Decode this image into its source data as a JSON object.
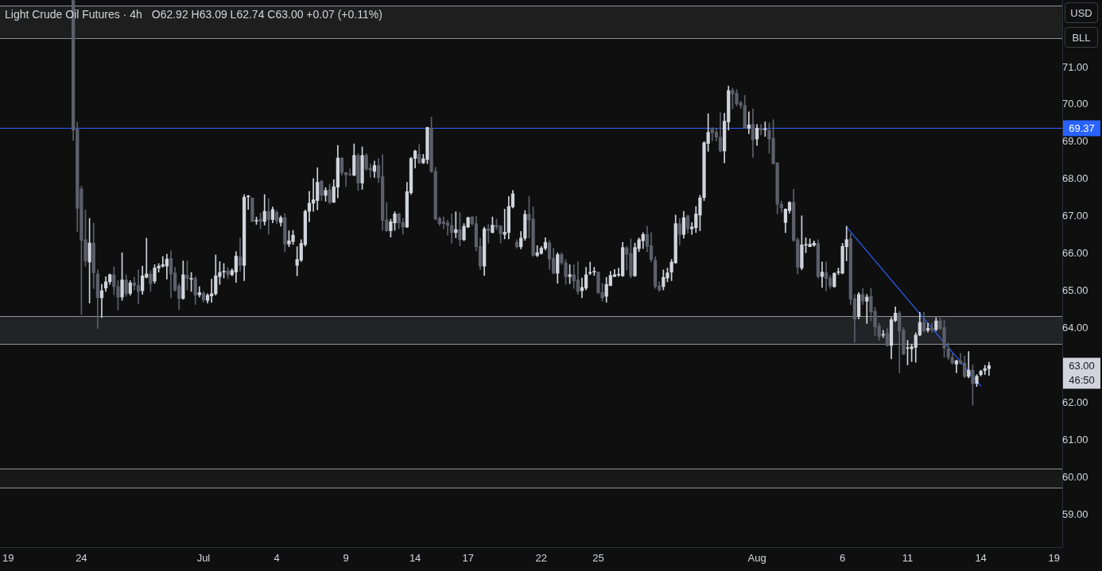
{
  "chart_data": {
    "type": "candlestick",
    "title": "Light Crude Oil Futures · 4h",
    "subtitle": "O62.92 H63.09 L62.74 C63.00 +0.07 (+0.11%)",
    "categories": [
      null,
      null,
      "19",
      null,
      null,
      null,
      null,
      null,
      null,
      null,
      null,
      null,
      null,
      null,
      null,
      null,
      null,
      null,
      null,
      null,
      "24",
      null,
      null,
      null,
      null,
      null,
      null,
      null,
      null,
      null,
      null,
      null,
      null,
      null,
      null,
      null,
      null,
      null,
      null,
      null,
      null,
      null,
      null,
      null,
      null,
      null,
      null,
      null,
      null,
      null,
      "Jul",
      null,
      null,
      null,
      null,
      null,
      null,
      null,
      null,
      null,
      null,
      null,
      null,
      null,
      null,
      null,
      null,
      null,
      "4",
      null,
      null,
      null,
      null,
      null,
      null,
      null,
      null,
      null,
      null,
      null,
      null,
      null,
      null,
      null,
      null,
      "9",
      null,
      null,
      null,
      null,
      null,
      null,
      null,
      null,
      null,
      null,
      null,
      null,
      null,
      null,
      null,
      null,
      "14",
      null,
      null,
      null,
      null,
      null,
      null,
      null,
      null,
      null,
      null,
      null,
      null,
      "17",
      null,
      null,
      null,
      null,
      null,
      null,
      null,
      null,
      null,
      null,
      null,
      null,
      null,
      null,
      null,
      null,
      null,
      "22",
      null,
      null,
      null,
      null,
      null,
      null,
      null,
      null,
      null,
      null,
      null,
      null,
      null,
      "25",
      null,
      null,
      null,
      null,
      null,
      null,
      null,
      null,
      null,
      null,
      null,
      null,
      null,
      null,
      null,
      null,
      null,
      null,
      null,
      null,
      null,
      null,
      null,
      null,
      null,
      null,
      null,
      null,
      null,
      null,
      null,
      null,
      null,
      null,
      null,
      null,
      null,
      null,
      "Aug",
      null,
      null,
      null,
      null,
      null,
      null,
      null,
      null,
      null,
      null,
      null,
      null,
      null,
      null,
      null,
      null,
      null,
      null,
      null,
      null,
      "6",
      null,
      null,
      null,
      null,
      null,
      null,
      null,
      null,
      null,
      null,
      null,
      null,
      null,
      null,
      null,
      "11",
      null,
      null,
      null,
      null,
      null,
      null,
      null,
      null,
      null,
      null,
      null,
      null,
      null,
      null,
      null,
      null,
      null,
      "14",
      null,
      null,
      null,
      null,
      null,
      null,
      null,
      null,
      null,
      null,
      null,
      null,
      null,
      null,
      null,
      null,
      null,
      "19",
      null,
      null
    ],
    "ylim": [
      58.13,
      72.81
    ],
    "yticks": [
      {
        "value": 59,
        "label": "59.00"
      },
      {
        "value": 60,
        "label": "60.00"
      },
      {
        "value": 61,
        "label": "61.00"
      },
      {
        "value": 62,
        "label": "62.00"
      },
      {
        "value": 64,
        "label": "64.00"
      },
      {
        "value": 65,
        "label": "65.00"
      },
      {
        "value": 66,
        "label": "66.00"
      },
      {
        "value": 67,
        "label": "67.00"
      },
      {
        "value": 68,
        "label": "68.00"
      },
      {
        "value": 69,
        "label": "69.00"
      },
      {
        "value": 70,
        "label": "70.00"
      },
      {
        "value": 71,
        "label": "71.00"
      }
    ],
    "bands": [
      {
        "axis": "y",
        "from": 71.79,
        "to": 72.66,
        "color": "#1e1e1e"
      },
      {
        "axis": "y",
        "from": 63.58,
        "to": 64.32,
        "color": "#222326"
      },
      {
        "axis": "y",
        "from": 59.72,
        "to": 60.24,
        "color": "#181818"
      }
    ],
    "ref_lines": [
      {
        "axis": "y",
        "value": 69.37,
        "label": "69.37",
        "color": "#2962ff"
      }
    ],
    "annotations": [
      "63.00",
      "46:50",
      "USD",
      "BLL"
    ],
    "series": [
      {
        "ohlc": [
          null,
          null,
          null,
          null,
          null,
          null,
          null,
          null,
          null,
          null,
          null,
          null,
          null,
          null,
          null,
          null,
          null,
          null,
          [
            72.8,
            72.8,
            69.04,
            69.32
          ],
          [
            69.34,
            69.53,
            66.6,
            67.22
          ],
          [
            67.74,
            67.82,
            64.37,
            66.36
          ],
          [
            66.38,
            67.18,
            65.67,
            65.81
          ],
          [
            65.78,
            66.95,
            64.68,
            66.29
          ],
          [
            66.29,
            66.82,
            65.07,
            65.49
          ],
          [
            65.46,
            65.57,
            64.0,
            64.82
          ],
          [
            64.82,
            65.18,
            64.29,
            65.01
          ],
          [
            65.08,
            65.39,
            64.99,
            65.25
          ],
          [
            65.25,
            65.46,
            65.18,
            65.44
          ],
          [
            65.44,
            65.65,
            64.9,
            65.12
          ],
          [
            65.12,
            65.28,
            64.5,
            64.84
          ],
          [
            64.84,
            66.03,
            64.75,
            65.3
          ],
          [
            65.3,
            65.44,
            64.86,
            64.93
          ],
          [
            64.94,
            65.28,
            64.89,
            65.22
          ],
          [
            65.22,
            65.37,
            65.03,
            65.15
          ],
          [
            65.15,
            65.57,
            64.66,
            64.99
          ],
          [
            65.01,
            65.67,
            64.91,
            65.41
          ],
          [
            65.37,
            66.42,
            65.35,
            65.46
          ],
          [
            65.46,
            65.55,
            64.99,
            65.2
          ],
          [
            65.27,
            65.71,
            65.21,
            65.62
          ],
          [
            65.62,
            65.74,
            65.51,
            65.67
          ],
          [
            65.67,
            65.93,
            65.64,
            65.71
          ],
          [
            65.67,
            65.99,
            65.32,
            65.86
          ],
          [
            65.88,
            66.08,
            64.82,
            65.46
          ],
          [
            65.49,
            65.64,
            64.99,
            65.03
          ],
          [
            65.14,
            65.2,
            64.5,
            64.8
          ],
          [
            64.8,
            65.81,
            64.78,
            65.44
          ],
          [
            65.42,
            65.81,
            65.03,
            65.34
          ],
          [
            65.32,
            65.5,
            64.99,
            65.34
          ],
          [
            65.34,
            65.39,
            64.64,
            64.89
          ],
          [
            64.9,
            65.12,
            64.84,
            64.96
          ],
          [
            64.94,
            64.99,
            64.7,
            64.77
          ],
          [
            64.75,
            64.93,
            64.68,
            64.89
          ],
          [
            64.87,
            65.32,
            64.7,
            64.93
          ],
          [
            64.93,
            65.97,
            64.89,
            65.41
          ],
          [
            65.39,
            65.79,
            65.18,
            65.5
          ],
          [
            65.51,
            65.74,
            65.35,
            65.53
          ],
          [
            65.55,
            65.64,
            65.33,
            65.44
          ],
          [
            65.44,
            65.6,
            65.41,
            65.55
          ],
          [
            65.51,
            66.06,
            65.23,
            65.94
          ],
          [
            65.92,
            66.42,
            65.53,
            65.69
          ],
          [
            65.69,
            67.59,
            65.28,
            67.52
          ],
          [
            67.53,
            67.57,
            67.19,
            67.55
          ],
          [
            67.5,
            67.5,
            66.86,
            66.87
          ],
          [
            66.88,
            66.99,
            66.79,
            66.9
          ],
          [
            66.93,
            67.09,
            66.67,
            66.87
          ],
          [
            66.87,
            67.59,
            66.77,
            67.14
          ],
          [
            67.14,
            67.48,
            66.52,
            66.92
          ],
          [
            66.92,
            67.26,
            66.83,
            67.19
          ],
          [
            67.11,
            67.16,
            66.81,
            66.88
          ],
          [
            66.84,
            67.02,
            66.74,
            66.97
          ],
          [
            66.97,
            67.08,
            66.05,
            66.26
          ],
          [
            66.26,
            66.62,
            66.19,
            66.35
          ],
          [
            66.33,
            66.63,
            66.25,
            66.5
          ],
          [
            65.69,
            66.19,
            65.41,
            65.85
          ],
          [
            65.83,
            66.38,
            65.79,
            66.28
          ],
          [
            66.25,
            67.18,
            66.2,
            67.14
          ],
          [
            67.14,
            67.68,
            66.86,
            67.36
          ],
          [
            67.36,
            68.02,
            67.14,
            67.45
          ],
          [
            67.43,
            68.31,
            67.18,
            67.92
          ],
          [
            67.95,
            67.97,
            67.43,
            67.57
          ],
          [
            67.57,
            67.78,
            67.41,
            67.7
          ],
          [
            67.72,
            67.87,
            67.34,
            67.38
          ],
          [
            67.38,
            67.99,
            67.38,
            67.8
          ],
          [
            67.79,
            68.91,
            67.5,
            68.57
          ],
          [
            68.57,
            68.59,
            68.11,
            68.18
          ],
          [
            68.18,
            68.19,
            67.8,
            68.12
          ],
          [
            68.14,
            68.28,
            68.09,
            68.12
          ],
          [
            68.11,
            68.95,
            68.09,
            68.64
          ],
          [
            68.64,
            68.69,
            67.7,
            67.9
          ],
          [
            67.9,
            68.87,
            67.73,
            68.64
          ],
          [
            68.64,
            68.69,
            68.23,
            68.28
          ],
          [
            68.3,
            68.41,
            68.05,
            68.25
          ],
          [
            68.21,
            68.49,
            68.05,
            68.37
          ],
          [
            68.37,
            68.56,
            67.91,
            68.05
          ],
          [
            68.07,
            68.66,
            66.63,
            66.9
          ],
          [
            66.91,
            67.38,
            66.6,
            66.62
          ],
          [
            66.62,
            66.93,
            66.45,
            66.86
          ],
          [
            66.83,
            67.13,
            66.63,
            67.07
          ],
          [
            67.07,
            67.09,
            66.67,
            66.83
          ],
          [
            66.84,
            66.95,
            66.52,
            66.72
          ],
          [
            66.72,
            67.92,
            66.7,
            67.67
          ],
          [
            67.64,
            68.59,
            67.59,
            68.56
          ],
          [
            68.56,
            68.78,
            68.3,
            68.76
          ],
          [
            68.67,
            68.94,
            68.42,
            68.44
          ],
          [
            68.44,
            68.67,
            68.42,
            68.55
          ],
          [
            68.53,
            69.4,
            68.42,
            69.39
          ],
          [
            69.37,
            69.67,
            68.18,
            68.21
          ],
          [
            68.21,
            68.32,
            66.91,
            66.93
          ],
          [
            66.95,
            66.99,
            66.76,
            66.81
          ],
          [
            66.86,
            66.99,
            66.67,
            66.81
          ],
          [
            66.83,
            66.9,
            66.5,
            66.76
          ],
          [
            66.76,
            67.07,
            66.28,
            66.57
          ],
          [
            66.57,
            67.13,
            66.43,
            66.65
          ],
          [
            66.65,
            67.11,
            66.21,
            66.38
          ],
          [
            66.38,
            66.81,
            66.35,
            66.74
          ],
          [
            66.72,
            66.99,
            66.7,
            66.97
          ],
          [
            66.99,
            67.0,
            66.76,
            66.81
          ],
          [
            66.81,
            67.0,
            66.08,
            66.19
          ],
          [
            66.2,
            66.42,
            65.58,
            65.67
          ],
          [
            65.67,
            66.72,
            65.42,
            66.67
          ],
          [
            66.67,
            66.79,
            66.29,
            66.62
          ],
          [
            66.57,
            66.99,
            66.56,
            66.77
          ],
          [
            66.77,
            66.93,
            66.65,
            66.72
          ],
          [
            66.74,
            66.77,
            66.29,
            66.54
          ],
          [
            66.52,
            67.2,
            66.4,
            66.58
          ],
          [
            66.57,
            67.54,
            66.4,
            67.27
          ],
          [
            67.26,
            67.7,
            67.23,
            67.61
          ],
          [
            66.31,
            66.38,
            66.15,
            66.19
          ],
          [
            66.19,
            66.6,
            66.13,
            66.42
          ],
          [
            66.42,
            67.16,
            66.36,
            67.06
          ],
          [
            67.06,
            67.54,
            66.42,
            66.91
          ],
          [
            66.93,
            67.26,
            65.93,
            65.96
          ],
          [
            65.96,
            66.22,
            65.92,
            66.03
          ],
          [
            66.01,
            66.2,
            65.99,
            66.15
          ],
          [
            66.15,
            66.43,
            66.1,
            66.31
          ],
          [
            66.29,
            66.35,
            65.58,
            65.86
          ],
          [
            65.88,
            66.15,
            65.46,
            65.48
          ],
          [
            65.48,
            66.03,
            65.21,
            65.98
          ],
          [
            65.98,
            66.03,
            65.71,
            65.76
          ],
          [
            65.76,
            65.85,
            65.18,
            65.39
          ],
          [
            65.39,
            65.71,
            65.2,
            65.44
          ],
          [
            65.44,
            65.71,
            65.07,
            65.27
          ],
          [
            65.3,
            65.78,
            64.91,
            64.99
          ],
          [
            65.01,
            65.35,
            64.82,
            65.1
          ],
          [
            65.08,
            65.64,
            65.03,
            65.44
          ],
          [
            65.48,
            65.78,
            65.44,
            65.49
          ],
          [
            65.51,
            65.64,
            65.42,
            65.53
          ],
          [
            65.51,
            65.51,
            64.93,
            64.96
          ],
          [
            64.96,
            65.21,
            64.73,
            64.82
          ],
          [
            64.86,
            65.37,
            64.7,
            65.18
          ],
          [
            65.15,
            65.53,
            65.14,
            65.42
          ],
          [
            65.39,
            65.58,
            65.39,
            65.44
          ],
          [
            65.43,
            65.62,
            65.39,
            65.45
          ],
          [
            65.41,
            66.31,
            65.39,
            66.17
          ],
          [
            66.16,
            66.2,
            65.56,
            65.99
          ],
          [
            66.01,
            66.4,
            65.35,
            65.41
          ],
          [
            65.41,
            66.29,
            65.39,
            66.17
          ],
          [
            66.14,
            66.43,
            66.06,
            66.38
          ],
          [
            66.35,
            66.57,
            66.14,
            66.52
          ],
          [
            66.52,
            66.74,
            66.05,
            66.2
          ],
          [
            66.22,
            66.57,
            65.78,
            65.85
          ],
          [
            65.83,
            65.92,
            65.07,
            65.12
          ],
          [
            65.14,
            65.25,
            64.99,
            65.03
          ],
          [
            65.12,
            65.57,
            65.03,
            65.37
          ],
          [
            65.35,
            65.62,
            65.25,
            65.49
          ],
          [
            65.51,
            65.85,
            65.28,
            65.78
          ],
          [
            65.76,
            67.04,
            65.74,
            66.81
          ],
          [
            66.81,
            66.95,
            66.24,
            66.52
          ],
          [
            66.52,
            67.14,
            66.42,
            66.97
          ],
          [
            67.02,
            67.04,
            66.55,
            66.67
          ],
          [
            66.67,
            66.84,
            66.52,
            66.72
          ],
          [
            66.7,
            67.27,
            66.57,
            67.07
          ],
          [
            67.04,
            67.57,
            66.62,
            67.5
          ],
          [
            67.51,
            69.01,
            67.43,
            68.98
          ],
          [
            68.96,
            69.76,
            68.75,
            69.26
          ],
          [
            69.34,
            69.39,
            69.03,
            69.25
          ],
          [
            69.26,
            69.37,
            69.03,
            69.13
          ],
          [
            69.13,
            69.79,
            68.73,
            68.76
          ],
          [
            68.76,
            69.77,
            68.44,
            69.56
          ],
          [
            69.54,
            70.5,
            69.32,
            70.38
          ],
          [
            70.38,
            70.45,
            69.89,
            70.29
          ],
          [
            70.31,
            70.41,
            69.97,
            70.03
          ],
          [
            70.05,
            70.1,
            69.9,
            69.98
          ],
          [
            69.98,
            70.25,
            69.37,
            69.38
          ],
          [
            69.37,
            69.81,
            69.22,
            69.46
          ],
          [
            69.47,
            69.89,
            68.59,
            69.06
          ],
          [
            69.08,
            69.47,
            68.91,
            69.37
          ],
          [
            69.37,
            69.47,
            69.19,
            69.32
          ],
          [
            69.33,
            69.54,
            69.15,
            69.35
          ],
          [
            69.32,
            69.51,
            68.7,
            69.08
          ],
          [
            69.1,
            69.6,
            68.41,
            68.42
          ],
          [
            68.44,
            68.45,
            67.07,
            67.33
          ],
          [
            67.33,
            67.41,
            67.11,
            67.23
          ],
          [
            66.84,
            67.21,
            66.57,
            67.2
          ],
          [
            67.16,
            67.4,
            67.09,
            67.38
          ],
          [
            67.38,
            67.73,
            66.33,
            66.36
          ],
          [
            66.38,
            66.43,
            65.46,
            65.64
          ],
          [
            65.62,
            67.02,
            65.57,
            66.24
          ],
          [
            66.23,
            66.43,
            66.03,
            66.25
          ],
          [
            66.19,
            66.4,
            66.19,
            66.26
          ],
          [
            66.23,
            66.35,
            66.2,
            66.29
          ],
          [
            66.28,
            66.38,
            65.35,
            65.39
          ],
          [
            65.39,
            65.78,
            65.1,
            65.51
          ],
          [
            65.5,
            65.78,
            65.01,
            65.34
          ],
          [
            65.35,
            65.42,
            65.07,
            65.14
          ],
          [
            65.12,
            65.49,
            65.1,
            65.48
          ],
          [
            65.5,
            65.62,
            65.44,
            65.51
          ],
          [
            65.48,
            66.28,
            65.46,
            66.2
          ],
          [
            66.19,
            66.74,
            65.81,
            66.38
          ],
          [
            66.4,
            66.54,
            64.64,
            64.78
          ],
          [
            64.8,
            64.91,
            63.63,
            64.25
          ],
          [
            64.32,
            64.96,
            64.25,
            64.91
          ],
          [
            64.91,
            65.07,
            64.64,
            64.73
          ],
          [
            64.73,
            64.91,
            64.13,
            64.84
          ],
          [
            64.86,
            65.08,
            64.2,
            64.44
          ],
          [
            64.46,
            64.57,
            63.8,
            64.04
          ],
          [
            64.06,
            64.14,
            63.68,
            63.78
          ],
          [
            63.82,
            63.95,
            63.75,
            63.84
          ],
          [
            63.87,
            64.0,
            63.52,
            63.54
          ],
          [
            63.54,
            64.29,
            63.18,
            64.23
          ],
          [
            64.21,
            64.58,
            64.18,
            64.41
          ],
          [
            64.41,
            64.46,
            62.81,
            63.93
          ],
          [
            63.95,
            64.02,
            63.29,
            63.31
          ],
          [
            63.46,
            63.68,
            63.02,
            63.48
          ],
          [
            63.45,
            63.58,
            63.11,
            63.51
          ],
          [
            63.49,
            63.88,
            63.09,
            63.82
          ],
          [
            63.82,
            64.43,
            63.8,
            64.16
          ],
          [
            64.16,
            64.43,
            63.9,
            63.93
          ],
          [
            63.95,
            64.14,
            63.9,
            64.0
          ],
          [
            64.0,
            64.14,
            63.9,
            63.97
          ],
          [
            63.97,
            64.29,
            63.93,
            64.2
          ],
          [
            64.2,
            64.29,
            63.96,
            64.0
          ],
          [
            64.02,
            64.22,
            63.22,
            63.47
          ],
          [
            63.45,
            63.61,
            63.16,
            63.22
          ],
          [
            63.22,
            63.33,
            63.04,
            63.07
          ],
          [
            63.04,
            63.15,
            62.81,
            63.13
          ],
          [
            63.13,
            63.33,
            63.04,
            63.07
          ],
          [
            63.07,
            63.26,
            62.67,
            62.71
          ],
          [
            62.71,
            63.38,
            62.67,
            62.88
          ],
          [
            62.88,
            63.02,
            61.94,
            62.52
          ],
          [
            62.52,
            62.76,
            62.44,
            62.72
          ],
          [
            62.76,
            62.88,
            62.72,
            62.85
          ],
          [
            62.87,
            63.01,
            62.76,
            62.92
          ],
          [
            62.92,
            63.09,
            62.74,
            63.0
          ],
          null,
          null,
          null,
          null,
          null,
          null,
          null,
          null,
          null,
          null,
          null,
          null,
          null,
          null,
          null,
          null,
          null,
          null
        ],
        "colors": [
          null,
          null,
          null,
          null,
          null,
          null,
          null,
          null,
          null,
          null,
          null,
          null,
          null,
          null,
          null,
          null,
          null,
          null,
          "#5d606b",
          "#5d606b",
          "#5d606b",
          "#5d606b",
          "#d1d4dc",
          "#5d606b",
          "#5d606b",
          "#d1d4dc",
          "#d1d4dc",
          "#d1d4dc",
          "#5d606b",
          "#5d606b",
          "#d1d4dc",
          "#5d606b",
          "#d1d4dc",
          "#5d606b",
          "#5d606b",
          "#d1d4dc",
          "#d1d4dc",
          "#5d606b",
          "#d1d4dc",
          "#d1d4dc",
          "#d1d4dc",
          "#d1d4dc",
          "#5d606b",
          "#5d606b",
          "#5d606b",
          "#d1d4dc",
          "#5d606b",
          "#d1d4dc",
          "#5d606b",
          "#d1d4dc",
          "#5d606b",
          "#d1d4dc",
          "#d1d4dc",
          "#d1d4dc",
          "#d1d4dc",
          "#d1d4dc",
          "#5d606b",
          "#d1d4dc",
          "#d1d4dc",
          "#5d606b",
          "#d1d4dc",
          "#d1d4dc",
          "#5d606b",
          "#d1d4dc",
          "#5d606b",
          "#d1d4dc",
          "#5d606b",
          "#d1d4dc",
          "#5d606b",
          "#d1d4dc",
          "#5d606b",
          "#d1d4dc",
          "#d1d4dc",
          "#d1d4dc",
          "#d1d4dc",
          "#d1d4dc",
          "#d1d4dc",
          "#d1d4dc",
          "#d1d4dc",
          "#5d606b",
          "#d1d4dc",
          "#5d606b",
          "#d1d4dc",
          "#d1d4dc",
          "#5d606b",
          "#5d606b",
          "#5d606b",
          "#d1d4dc",
          "#5d606b",
          "#d1d4dc",
          "#5d606b",
          "#5d606b",
          "#d1d4dc",
          "#5d606b",
          "#5d606b",
          "#5d606b",
          "#d1d4dc",
          "#d1d4dc",
          "#5d606b",
          "#5d606b",
          "#d1d4dc",
          "#d1d4dc",
          "#d1d4dc",
          "#5d606b",
          "#d1d4dc",
          "#d1d4dc",
          "#5d606b",
          "#5d606b",
          "#5d606b",
          "#5d606b",
          "#5d606b",
          "#5d606b",
          "#d1d4dc",
          "#5d606b",
          "#d1d4dc",
          "#d1d4dc",
          "#5d606b",
          "#5d606b",
          "#5d606b",
          "#d1d4dc",
          "#5d606b",
          "#d1d4dc",
          "#5d606b",
          "#5d606b",
          "#d1d4dc",
          "#d1d4dc",
          "#d1d4dc",
          "#5d606b",
          "#d1d4dc",
          "#d1d4dc",
          "#5d606b",
          "#5d606b",
          "#d1d4dc",
          "#d1d4dc",
          "#d1d4dc",
          "#5d606b",
          "#5d606b",
          "#d1d4dc",
          "#5d606b",
          "#5d606b",
          "#d1d4dc",
          "#5d606b",
          "#5d606b",
          "#d1d4dc",
          "#d1d4dc",
          "#d1d4dc",
          "#d1d4dc",
          "#5d606b",
          "#5d606b",
          "#d1d4dc",
          "#d1d4dc",
          "#d1d4dc",
          "#d1d4dc",
          "#d1d4dc",
          "#5d606b",
          "#5d606b",
          "#d1d4dc",
          "#d1d4dc",
          "#d1d4dc",
          "#5d606b",
          "#5d606b",
          "#5d606b",
          "#5d606b",
          "#d1d4dc",
          "#d1d4dc",
          "#d1d4dc",
          "#d1d4dc",
          "#5d606b",
          "#d1d4dc",
          "#5d606b",
          "#d1d4dc",
          "#d1d4dc",
          "#d1d4dc",
          "#d1d4dc",
          "#d1d4dc",
          "#5d606b",
          "#5d606b",
          "#5d606b",
          "#d1d4dc",
          "#d1d4dc",
          "#5d606b",
          "#5d606b",
          "#5d606b",
          "#5d606b",
          "#d1d4dc",
          "#5d606b",
          "#d1d4dc",
          "#5d606b",
          "#d1d4dc",
          "#5d606b",
          "#5d606b",
          "#5d606b",
          "#5d606b",
          "#d1d4dc",
          "#d1d4dc",
          "#5d606b",
          "#5d606b",
          "#d1d4dc",
          "#d1d4dc",
          "#d1d4dc",
          "#d1d4dc",
          "#5d606b",
          "#d1d4dc",
          "#5d606b",
          "#5d606b",
          "#d1d4dc",
          "#d1d4dc",
          "#d1d4dc",
          "#d1d4dc",
          "#5d606b",
          "#5d606b",
          "#d1d4dc",
          "#5d606b",
          "#d1d4dc",
          "#5d606b",
          "#5d606b",
          "#5d606b",
          "#d1d4dc",
          "#5d606b",
          "#d1d4dc",
          "#d1d4dc",
          "#5d606b",
          "#5d606b",
          "#d1d4dc",
          "#d1d4dc",
          "#d1d4dc",
          "#d1d4dc",
          "#5d606b",
          "#d1d4dc",
          "#5d606b",
          "#d1d4dc",
          "#5d606b",
          "#5d606b",
          "#5d606b",
          "#5d606b",
          "#d1d4dc",
          "#5d606b",
          "#5d606b",
          "#d1d4dc",
          "#5d606b",
          "#d1d4dc",
          "#d1d4dc",
          "#d1d4dc",
          "#d1d4dc",
          null,
          null,
          null,
          null,
          null,
          null,
          null,
          null,
          null,
          null,
          null,
          null,
          null,
          null,
          null,
          null,
          null,
          null
        ]
      },
      {
        "type": "line",
        "color": "#2962ff",
        "values": [
          null,
          null,
          null,
          null,
          null,
          null,
          null,
          null,
          null,
          null,
          null,
          null,
          null,
          null,
          null,
          null,
          null,
          null,
          null,
          null,
          null,
          null,
          null,
          null,
          null,
          null,
          null,
          null,
          null,
          null,
          null,
          null,
          null,
          null,
          null,
          null,
          null,
          null,
          null,
          null,
          null,
          null,
          null,
          null,
          null,
          null,
          null,
          null,
          null,
          null,
          null,
          null,
          null,
          null,
          null,
          null,
          null,
          null,
          null,
          null,
          null,
          null,
          null,
          null,
          null,
          null,
          null,
          null,
          null,
          null,
          null,
          null,
          null,
          null,
          null,
          null,
          null,
          null,
          null,
          null,
          null,
          null,
          null,
          null,
          null,
          null,
          null,
          null,
          null,
          null,
          null,
          null,
          null,
          null,
          null,
          null,
          null,
          null,
          null,
          null,
          null,
          null,
          null,
          null,
          null,
          null,
          null,
          null,
          null,
          null,
          null,
          null,
          null,
          null,
          null,
          null,
          null,
          null,
          null,
          null,
          null,
          null,
          null,
          null,
          null,
          null,
          null,
          null,
          null,
          null,
          null,
          null,
          null,
          null,
          null,
          null,
          null,
          null,
          null,
          null,
          null,
          null,
          null,
          null,
          null,
          null,
          null,
          null,
          null,
          null,
          null,
          null,
          null,
          null,
          null,
          null,
          null,
          null,
          null,
          null,
          null,
          null,
          null,
          null,
          null,
          null,
          null,
          null,
          null,
          null,
          null,
          null,
          null,
          null,
          null,
          null,
          null,
          null,
          null,
          null,
          null,
          null,
          null,
          null,
          null,
          null,
          null,
          null,
          null,
          null,
          null,
          null,
          null,
          null,
          null,
          null,
          null,
          null,
          null,
          null,
          null,
          null,
          null,
          null,
          null,
          null,
          null,
          null,
          66.72,
          null,
          null,
          null,
          null,
          null,
          null,
          null,
          null,
          null,
          null,
          null,
          null,
          null,
          null,
          null,
          null,
          null,
          null,
          null,
          null,
          null,
          null,
          null,
          null,
          null,
          null,
          null,
          null,
          null,
          null,
          null,
          null,
          62.46,
          null,
          null,
          null,
          null,
          null,
          null,
          null,
          null,
          null,
          null,
          null,
          null,
          null,
          null,
          null,
          null,
          null,
          null,
          null,
          null
        ]
      }
    ]
  }
}
